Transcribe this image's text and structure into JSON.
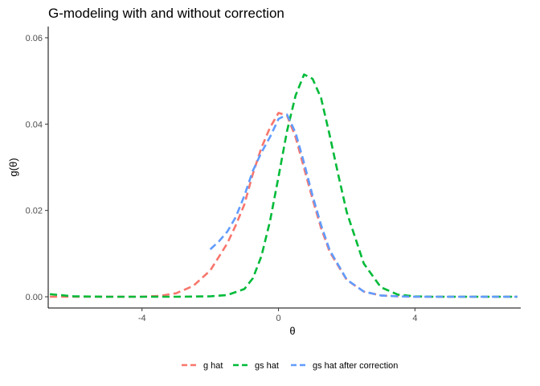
{
  "chart_data": {
    "type": "line",
    "title": "G-modeling with and without correction",
    "xlabel": "θ",
    "ylabel": "g(θ)",
    "xlim": [
      -6.75,
      7.1
    ],
    "ylim": [
      -0.0026,
      0.0626
    ],
    "x_ticks": [
      -4,
      0,
      4
    ],
    "x_tick_labels": [
      "-4",
      "0",
      "4"
    ],
    "y_ticks": [
      0,
      0.02,
      0.04,
      0.06
    ],
    "y_tick_labels": [
      "0.00",
      "0.02",
      "0.04",
      "0.06"
    ],
    "grid": false,
    "legend_position": "bottom",
    "line_style": "dashed",
    "series": [
      {
        "name": "g hat",
        "color": "#F8766D",
        "x": [
          -6.7,
          -5,
          -4,
          -3.5,
          -3,
          -2.5,
          -2,
          -1.5,
          -1.25,
          -1,
          -0.75,
          -0.5,
          -0.25,
          0,
          0.25,
          0.5,
          0.75,
          1,
          1.25,
          1.5,
          2,
          2.5,
          3,
          3.5,
          4,
          5,
          6,
          7
        ],
        "y": [
          0,
          0,
          0,
          0.0002,
          0.0008,
          0.0025,
          0.0061,
          0.0124,
          0.0166,
          0.0214,
          0.0285,
          0.0345,
          0.0392,
          0.0426,
          0.042,
          0.037,
          0.0298,
          0.0226,
          0.0159,
          0.0104,
          0.0039,
          0.0012,
          0.0003,
          0.0001,
          0,
          0,
          0,
          0
        ]
      },
      {
        "name": "gs hat",
        "color": "#00BA38",
        "x": [
          -6.7,
          -6,
          -5,
          -4,
          -3,
          -2,
          -1.5,
          -1,
          -0.75,
          -0.5,
          -0.25,
          0,
          0.25,
          0.5,
          0.75,
          1,
          1.25,
          1.5,
          1.75,
          2,
          2.5,
          3,
          3.5,
          4,
          4.5,
          5,
          6,
          7
        ],
        "y": [
          0.0006,
          0.0001,
          0,
          0,
          0,
          0.0001,
          0.0004,
          0.0018,
          0.0043,
          0.0094,
          0.0175,
          0.0278,
          0.0384,
          0.0466,
          0.0515,
          0.0505,
          0.046,
          0.0374,
          0.0283,
          0.0196,
          0.0077,
          0.0022,
          0.0005,
          0.0001,
          0,
          0,
          0,
          0
        ]
      },
      {
        "name": "gs hat after correction",
        "color": "#619CFF",
        "x": [
          -2,
          -1.75,
          -1.5,
          -1.25,
          -1,
          -0.75,
          -0.5,
          -0.25,
          0,
          0.25,
          0.5,
          0.75,
          1,
          1.25,
          1.5,
          2,
          2.5,
          3,
          3.5,
          4,
          5,
          6,
          7
        ],
        "y": [
          0.011,
          0.0128,
          0.0151,
          0.0185,
          0.0234,
          0.0292,
          0.0334,
          0.037,
          0.0412,
          0.0422,
          0.038,
          0.031,
          0.0234,
          0.0166,
          0.0108,
          0.004,
          0.0012,
          0.0003,
          0.0001,
          0,
          0,
          0,
          0
        ]
      }
    ]
  }
}
